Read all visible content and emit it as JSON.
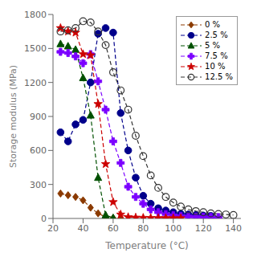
{
  "chart_data": {
    "type": "line",
    "xlabel": "Temperature (°C)",
    "ylabel": "Storage modulus (MPa)",
    "xlim": [
      20,
      145
    ],
    "ylim": [
      0,
      1800
    ],
    "xticks": [
      20,
      40,
      60,
      80,
      100,
      120,
      140
    ],
    "yticks": [
      0,
      300,
      600,
      900,
      1200,
      1500,
      1800
    ],
    "grid": false,
    "legend": "upper right",
    "line_style": "dashed",
    "series": [
      {
        "name": "0 %",
        "color": "#8B3A00",
        "marker": "diamond",
        "x": [
          25,
          30,
          35,
          40,
          45,
          50,
          55,
          60,
          65
        ],
        "values": [
          220,
          205,
          190,
          160,
          95,
          45,
          12,
          4,
          2
        ]
      },
      {
        "name": "2.5 %",
        "color": "#00008B",
        "marker": "circle",
        "x": [
          25,
          30,
          35,
          40,
          45,
          50,
          55,
          60,
          65,
          70,
          75,
          80,
          85,
          90,
          95,
          100,
          105,
          110,
          115,
          120,
          125
        ],
        "values": [
          760,
          680,
          830,
          870,
          1200,
          1630,
          1680,
          1640,
          930,
          600,
          360,
          200,
          130,
          90,
          70,
          55,
          40,
          35,
          30,
          25,
          22
        ]
      },
      {
        "name": "5 %",
        "color": "#005000",
        "marker": "triangle",
        "x": [
          25,
          30,
          35,
          40,
          45,
          50,
          55,
          60
        ],
        "values": [
          1540,
          1520,
          1490,
          1240,
          910,
          360,
          30,
          5
        ]
      },
      {
        "name": "7.5 %",
        "color": "#7B00FF",
        "marker": "plus",
        "x": [
          25,
          30,
          35,
          40,
          45,
          50,
          55,
          60,
          65,
          70,
          75,
          80,
          85,
          90,
          95,
          100,
          105,
          110,
          115,
          120,
          125,
          130
        ],
        "values": [
          1470,
          1460,
          1430,
          1370,
          1450,
          1210,
          960,
          680,
          490,
          280,
          190,
          130,
          80,
          55,
          38,
          28,
          22,
          18,
          15,
          14,
          13,
          12
        ]
      },
      {
        "name": "10 %",
        "color": "#CC0000",
        "marker": "star",
        "x": [
          25,
          30,
          35,
          40,
          45,
          50,
          55,
          60,
          65,
          70,
          75,
          80,
          85,
          90,
          95,
          100,
          105
        ],
        "values": [
          1680,
          1650,
          1640,
          1450,
          1440,
          1010,
          480,
          145,
          35,
          12,
          8,
          6,
          5,
          4,
          4,
          3,
          3
        ]
      },
      {
        "name": "12.5 %",
        "color": "#333333",
        "marker": "open_circle",
        "x": [
          25,
          30,
          35,
          40,
          45,
          50,
          55,
          60,
          65,
          70,
          75,
          80,
          85,
          90,
          95,
          100,
          105,
          110,
          115,
          120,
          125,
          130,
          135,
          140
        ],
        "values": [
          1650,
          1660,
          1680,
          1740,
          1730,
          1650,
          1530,
          1290,
          1130,
          960,
          730,
          550,
          380,
          270,
          190,
          140,
          105,
          80,
          65,
          55,
          45,
          40,
          35,
          30
        ]
      }
    ]
  }
}
